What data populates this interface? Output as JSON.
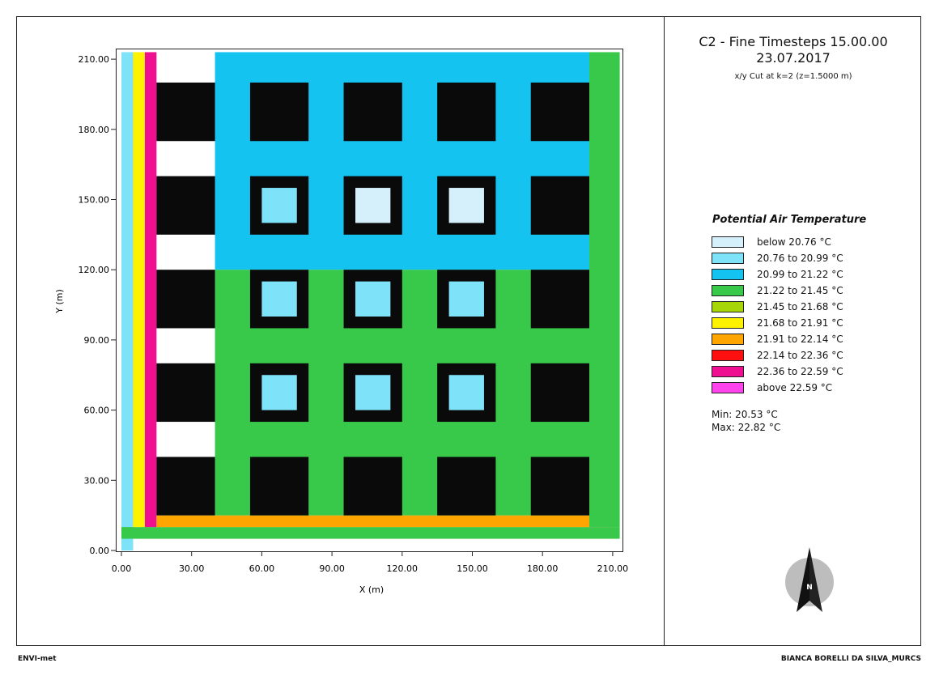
{
  "title": {
    "line1": "C2 - Fine Timesteps 15.00.00",
    "line2": "23.07.2017",
    "line3": "x/y Cut at k=2 (z=1.5000 m)"
  },
  "legend": {
    "title": "Potential Air Temperature",
    "items": [
      {
        "label": "below 20.76 °C",
        "color": "#d5f0fb"
      },
      {
        "label": "20.76 to 20.99 °C",
        "color": "#7ee3f8"
      },
      {
        "label": "20.99 to 21.22 °C",
        "color": "#14c3f0"
      },
      {
        "label": "21.22 to 21.45 °C",
        "color": "#38c84a"
      },
      {
        "label": "21.45 to 21.68 °C",
        "color": "#a6d608"
      },
      {
        "label": "21.68 to 21.91 °C",
        "color": "#fff200"
      },
      {
        "label": "21.91 to 22.14 °C",
        "color": "#ffa500"
      },
      {
        "label": "22.14 to 22.36 °C",
        "color": "#ff1010"
      },
      {
        "label": "22.36 to 22.59 °C",
        "color": "#ee1090"
      },
      {
        "label": "above 22.59 °C",
        "color": "#ff44ee"
      }
    ]
  },
  "stats": {
    "min": "Min: 20.53 °C",
    "max": "Max: 22.82 °C"
  },
  "footer": {
    "left": "ENVI-met",
    "right": "BIANCA BORELLI DA SILVA_MURCS"
  },
  "chart_data": {
    "type": "heatmap",
    "xlabel": "X (m)",
    "ylabel": "Y (m)",
    "xlim": [
      0,
      213
    ],
    "ylim": [
      0,
      213
    ],
    "xticks": [
      "0.00",
      "30.00",
      "60.00",
      "90.00",
      "120.00",
      "150.00",
      "180.00",
      "210.00"
    ],
    "yticks": [
      "0.00",
      "30.00",
      "60.00",
      "90.00",
      "120.00",
      "150.00",
      "180.00",
      "210.00"
    ],
    "building_color": "#0a0a0a",
    "buildings": [
      [
        15,
        40,
        15,
        40
      ],
      [
        55,
        80,
        15,
        40
      ],
      [
        95,
        120,
        15,
        40
      ],
      [
        135,
        160,
        15,
        40
      ],
      [
        175,
        200,
        15,
        40
      ],
      [
        15,
        40,
        55,
        80
      ],
      [
        175,
        200,
        55,
        80
      ],
      [
        15,
        40,
        95,
        120
      ],
      [
        175,
        200,
        95,
        120
      ],
      [
        15,
        40,
        135,
        160
      ],
      [
        175,
        200,
        135,
        160
      ],
      [
        15,
        40,
        175,
        200
      ],
      [
        55,
        80,
        175,
        200
      ],
      [
        95,
        120,
        175,
        200
      ],
      [
        135,
        160,
        175,
        200
      ],
      [
        175,
        200,
        175,
        200
      ]
    ],
    "ring_buildings": [
      [
        55,
        80,
        55,
        80
      ],
      [
        95,
        120,
        55,
        80
      ],
      [
        135,
        160,
        55,
        80
      ],
      [
        55,
        80,
        95,
        120
      ],
      [
        95,
        120,
        95,
        120
      ],
      [
        135,
        160,
        95,
        120
      ],
      [
        55,
        80,
        135,
        160
      ],
      [
        95,
        120,
        135,
        160
      ],
      [
        135,
        160,
        135,
        160
      ]
    ],
    "courtyard_class": [
      1,
      1,
      1,
      1,
      1,
      1,
      1,
      0,
      0
    ],
    "temperature_zones": [
      {
        "class": 1,
        "x": [
          0,
          5
        ],
        "y": [
          0,
          213
        ]
      },
      {
        "class": 3,
        "x": [
          0,
          213
        ],
        "y": [
          5,
          10
        ]
      },
      {
        "class": 5,
        "x": [
          5,
          10
        ],
        "y": [
          10,
          213
        ]
      },
      {
        "class": 8,
        "x": [
          10,
          15
        ],
        "y": [
          10,
          213
        ]
      },
      {
        "class": 6,
        "x": [
          15,
          210
        ],
        "y": [
          10,
          15
        ]
      },
      {
        "class": 3,
        "x": [
          200,
          213
        ],
        "y": [
          10,
          213
        ]
      },
      {
        "class": 2,
        "x": [
          40,
          200
        ],
        "y": [
          120,
          213
        ]
      },
      {
        "class": 3,
        "x": [
          40,
          200
        ],
        "y": [
          15,
          120
        ]
      }
    ]
  }
}
